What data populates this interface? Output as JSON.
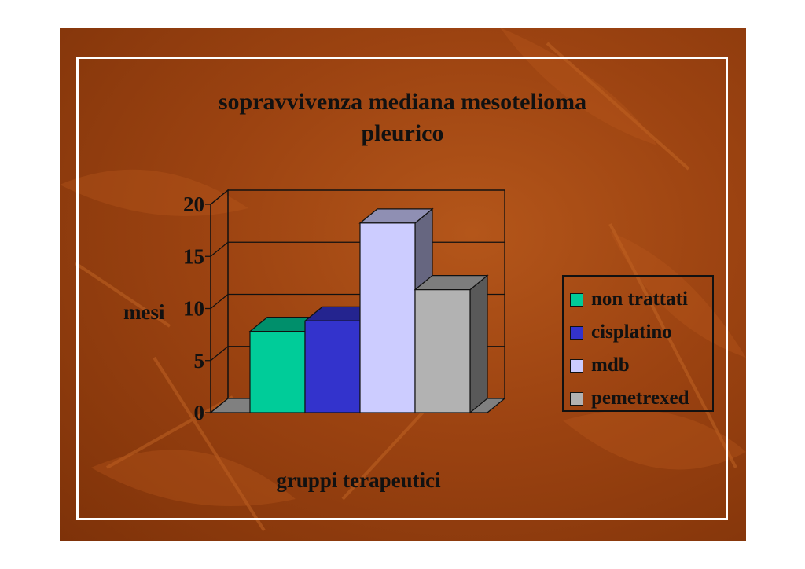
{
  "chart_data": {
    "type": "bar",
    "title_lines": [
      "sopravvivenza mediana mesotelioma",
      "pleurico"
    ],
    "xlabel": "gruppi terapeutici",
    "ylabel": "mesi",
    "ylim": [
      0,
      20
    ],
    "yticks": [
      "0",
      "5",
      "10",
      "15",
      "20"
    ],
    "grid": true,
    "three_d": true,
    "legend_position": "right",
    "series": [
      {
        "name": "non trattati",
        "value": 7.8,
        "color": "#00cc99"
      },
      {
        "name": "cisplatino",
        "value": 8.8,
        "color": "#3333cc"
      },
      {
        "name": "mdb",
        "value": 18.2,
        "color": "#ccccff"
      },
      {
        "name": "pemetrexed",
        "value": 11.8,
        "color": "#b2b2b2"
      }
    ]
  }
}
